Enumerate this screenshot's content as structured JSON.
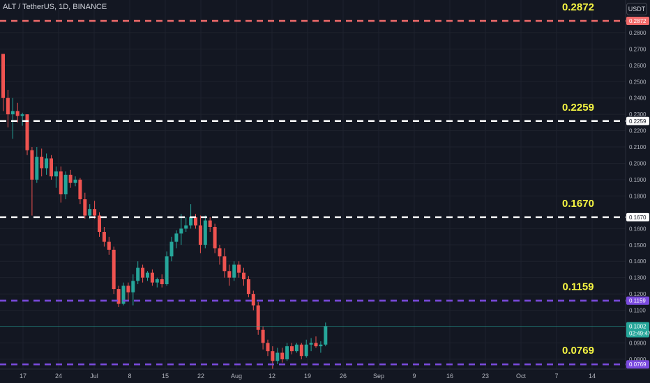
{
  "header": {
    "symbol_line": "ALT / TetherUS, 1D, BINANCE",
    "currency_badge": "USDT"
  },
  "colors": {
    "background": "#131722",
    "grid": "#1e222d",
    "up": "#26a69a",
    "down": "#ef5350",
    "axis_text": "#b2b5be",
    "annotation_text": "#f5f542",
    "line_white": "#ffffff",
    "line_red": "#f26b6b",
    "line_purple": "#7b4bdf"
  },
  "chart_data": {
    "type": "candlestick",
    "ylim": [
      0.074,
      0.3
    ],
    "y_ticks": [
      "0.2800",
      "0.2700",
      "0.2600",
      "0.2500",
      "0.2400",
      "0.2300",
      "0.2200",
      "0.2100",
      "0.2000",
      "0.1900",
      "0.1800",
      "0.1600",
      "0.1500",
      "0.1400",
      "0.1300",
      "0.1200",
      "0.1100",
      "0.0900",
      "0.0800"
    ],
    "x_ticks": [
      "17",
      "24",
      "Jul",
      "8",
      "15",
      "22",
      "Aug",
      "12",
      "19",
      "26",
      "Sep",
      "9",
      "16",
      "23",
      "Oct",
      "7",
      "14"
    ],
    "levels": [
      {
        "value": 0.2872,
        "label": "0.2872",
        "tag": "0.2872",
        "style": "red"
      },
      {
        "value": 0.2259,
        "label": "0.2259",
        "tag": "0.2259",
        "style": "white"
      },
      {
        "value": 0.167,
        "label": "0.1670",
        "tag": "0.1670",
        "style": "white"
      },
      {
        "value": 0.1159,
        "label": "0.1159",
        "tag": "0.1159",
        "style": "purple"
      },
      {
        "value": 0.0769,
        "label": "0.0769",
        "tag": "0.0769",
        "style": "purple"
      }
    ],
    "last_price": {
      "value": 0.1002,
      "price_label": "0.1002",
      "countdown": "02:49:47"
    },
    "candles": [
      {
        "o": 0.267,
        "h": 0.267,
        "l": 0.232,
        "c": 0.24
      },
      {
        "o": 0.24,
        "h": 0.245,
        "l": 0.222,
        "c": 0.23
      },
      {
        "o": 0.23,
        "h": 0.24,
        "l": 0.215,
        "c": 0.232
      },
      {
        "o": 0.232,
        "h": 0.237,
        "l": 0.225,
        "c": 0.229
      },
      {
        "o": 0.229,
        "h": 0.231,
        "l": 0.223,
        "c": 0.23
      },
      {
        "o": 0.23,
        "h": 0.23,
        "l": 0.205,
        "c": 0.208
      },
      {
        "o": 0.208,
        "h": 0.21,
        "l": 0.168,
        "c": 0.19
      },
      {
        "o": 0.19,
        "h": 0.21,
        "l": 0.188,
        "c": 0.204
      },
      {
        "o": 0.204,
        "h": 0.209,
        "l": 0.192,
        "c": 0.197
      },
      {
        "o": 0.197,
        "h": 0.206,
        "l": 0.193,
        "c": 0.203
      },
      {
        "o": 0.203,
        "h": 0.205,
        "l": 0.19,
        "c": 0.192
      },
      {
        "o": 0.192,
        "h": 0.198,
        "l": 0.185,
        "c": 0.195
      },
      {
        "o": 0.195,
        "h": 0.198,
        "l": 0.176,
        "c": 0.181
      },
      {
        "o": 0.181,
        "h": 0.195,
        "l": 0.178,
        "c": 0.193
      },
      {
        "o": 0.193,
        "h": 0.196,
        "l": 0.185,
        "c": 0.188
      },
      {
        "o": 0.188,
        "h": 0.192,
        "l": 0.186,
        "c": 0.19
      },
      {
        "o": 0.19,
        "h": 0.191,
        "l": 0.175,
        "c": 0.178
      },
      {
        "o": 0.178,
        "h": 0.182,
        "l": 0.166,
        "c": 0.168
      },
      {
        "o": 0.168,
        "h": 0.175,
        "l": 0.166,
        "c": 0.172
      },
      {
        "o": 0.172,
        "h": 0.177,
        "l": 0.166,
        "c": 0.168
      },
      {
        "o": 0.168,
        "h": 0.17,
        "l": 0.155,
        "c": 0.158
      },
      {
        "o": 0.158,
        "h": 0.161,
        "l": 0.149,
        "c": 0.152
      },
      {
        "o": 0.152,
        "h": 0.155,
        "l": 0.144,
        "c": 0.147
      },
      {
        "o": 0.147,
        "h": 0.149,
        "l": 0.12,
        "c": 0.123
      },
      {
        "o": 0.123,
        "h": 0.125,
        "l": 0.112,
        "c": 0.114
      },
      {
        "o": 0.114,
        "h": 0.127,
        "l": 0.113,
        "c": 0.125
      },
      {
        "o": 0.125,
        "h": 0.127,
        "l": 0.116,
        "c": 0.121
      },
      {
        "o": 0.121,
        "h": 0.132,
        "l": 0.113,
        "c": 0.128
      },
      {
        "o": 0.128,
        "h": 0.14,
        "l": 0.126,
        "c": 0.136
      },
      {
        "o": 0.136,
        "h": 0.138,
        "l": 0.127,
        "c": 0.13
      },
      {
        "o": 0.13,
        "h": 0.134,
        "l": 0.128,
        "c": 0.133
      },
      {
        "o": 0.133,
        "h": 0.135,
        "l": 0.125,
        "c": 0.127
      },
      {
        "o": 0.127,
        "h": 0.13,
        "l": 0.124,
        "c": 0.129
      },
      {
        "o": 0.129,
        "h": 0.132,
        "l": 0.124,
        "c": 0.126
      },
      {
        "o": 0.126,
        "h": 0.146,
        "l": 0.125,
        "c": 0.143
      },
      {
        "o": 0.143,
        "h": 0.155,
        "l": 0.14,
        "c": 0.152
      },
      {
        "o": 0.152,
        "h": 0.159,
        "l": 0.148,
        "c": 0.157
      },
      {
        "o": 0.157,
        "h": 0.169,
        "l": 0.15,
        "c": 0.16
      },
      {
        "o": 0.16,
        "h": 0.167,
        "l": 0.158,
        "c": 0.162
      },
      {
        "o": 0.162,
        "h": 0.175,
        "l": 0.16,
        "c": 0.167
      },
      {
        "o": 0.167,
        "h": 0.169,
        "l": 0.16,
        "c": 0.162
      },
      {
        "o": 0.162,
        "h": 0.168,
        "l": 0.145,
        "c": 0.15
      },
      {
        "o": 0.15,
        "h": 0.168,
        "l": 0.148,
        "c": 0.165
      },
      {
        "o": 0.165,
        "h": 0.167,
        "l": 0.158,
        "c": 0.161
      },
      {
        "o": 0.161,
        "h": 0.163,
        "l": 0.145,
        "c": 0.148
      },
      {
        "o": 0.148,
        "h": 0.15,
        "l": 0.138,
        "c": 0.143
      },
      {
        "o": 0.143,
        "h": 0.148,
        "l": 0.13,
        "c": 0.134
      },
      {
        "o": 0.134,
        "h": 0.138,
        "l": 0.125,
        "c": 0.13
      },
      {
        "o": 0.13,
        "h": 0.14,
        "l": 0.128,
        "c": 0.138
      },
      {
        "o": 0.138,
        "h": 0.14,
        "l": 0.13,
        "c": 0.133
      },
      {
        "o": 0.133,
        "h": 0.136,
        "l": 0.125,
        "c": 0.129
      },
      {
        "o": 0.129,
        "h": 0.131,
        "l": 0.118,
        "c": 0.12
      },
      {
        "o": 0.12,
        "h": 0.122,
        "l": 0.11,
        "c": 0.113
      },
      {
        "o": 0.113,
        "h": 0.115,
        "l": 0.095,
        "c": 0.098
      },
      {
        "o": 0.098,
        "h": 0.1,
        "l": 0.086,
        "c": 0.09
      },
      {
        "o": 0.09,
        "h": 0.092,
        "l": 0.082,
        "c": 0.085
      },
      {
        "o": 0.085,
        "h": 0.088,
        "l": 0.074,
        "c": 0.079
      },
      {
        "o": 0.079,
        "h": 0.087,
        "l": 0.077,
        "c": 0.084
      },
      {
        "o": 0.084,
        "h": 0.087,
        "l": 0.078,
        "c": 0.08
      },
      {
        "o": 0.08,
        "h": 0.09,
        "l": 0.079,
        "c": 0.088
      },
      {
        "o": 0.088,
        "h": 0.09,
        "l": 0.083,
        "c": 0.085
      },
      {
        "o": 0.085,
        "h": 0.09,
        "l": 0.084,
        "c": 0.089
      },
      {
        "o": 0.089,
        "h": 0.09,
        "l": 0.08,
        "c": 0.082
      },
      {
        "o": 0.082,
        "h": 0.092,
        "l": 0.081,
        "c": 0.089
      },
      {
        "o": 0.089,
        "h": 0.093,
        "l": 0.085,
        "c": 0.09
      },
      {
        "o": 0.09,
        "h": 0.094,
        "l": 0.087,
        "c": 0.088
      },
      {
        "o": 0.088,
        "h": 0.091,
        "l": 0.084,
        "c": 0.089
      },
      {
        "o": 0.089,
        "h": 0.1025,
        "l": 0.088,
        "c": 0.1002
      }
    ]
  }
}
